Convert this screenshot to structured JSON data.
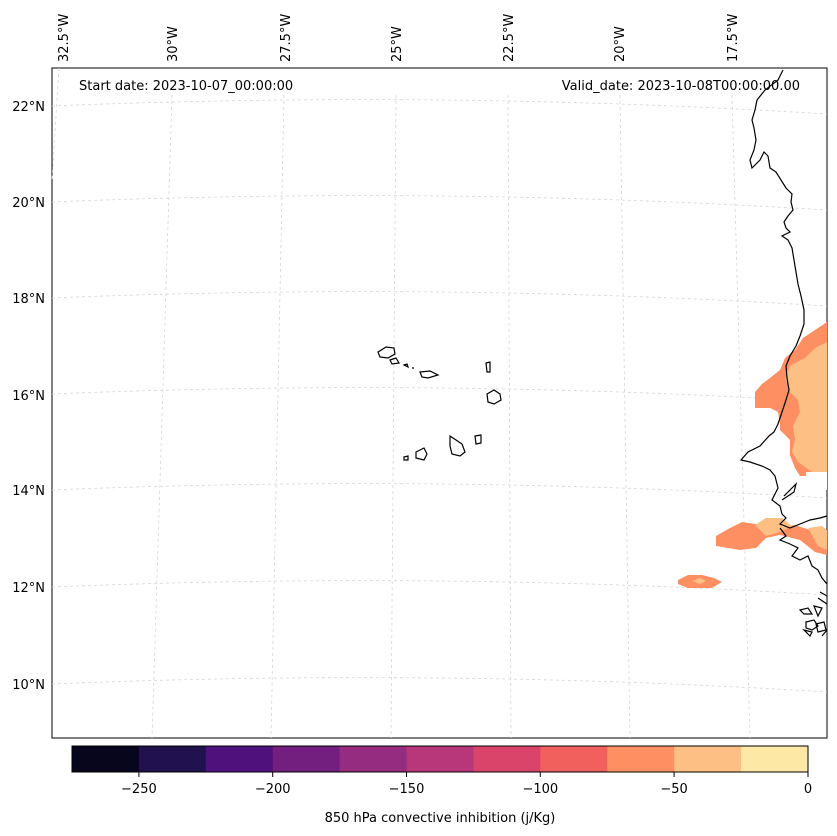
{
  "map": {
    "start_date": "Start date: 2023-10-07_00:00:00",
    "valid_date": "Valid_date: 2023-10-08T00:00:00.00",
    "longitude_labels": [
      "32.5°W",
      "30°W",
      "27.5°W",
      "25°W",
      "22.5°W",
      "20°W",
      "17.5°W"
    ],
    "latitude_labels": [
      "22°N",
      "20°N",
      "18°N",
      "16°N",
      "14°N",
      "12°N",
      "10°N"
    ],
    "gridlines": true,
    "coastline_color": "#000000",
    "gridline_color": "#d0d0d0",
    "regions": [
      "Cape Verde islands",
      "West African coast"
    ]
  },
  "colorbar": {
    "label": "850 hPa convective inhibition (j/Kg)",
    "tick_labels": [
      "−250",
      "−200",
      "−150",
      "−100",
      "−50",
      "0"
    ],
    "levels": [
      -275,
      -250,
      -225,
      -200,
      -175,
      -150,
      -125,
      -100,
      -75,
      -50,
      -25,
      0
    ],
    "colors": [
      "#07061c",
      "#21114e",
      "#4f117b",
      "#731f80",
      "#962c7f",
      "#b8367a",
      "#da446b",
      "#f1605d",
      "#fd8f62",
      "#febf84",
      "#fde8a6"
    ]
  }
}
